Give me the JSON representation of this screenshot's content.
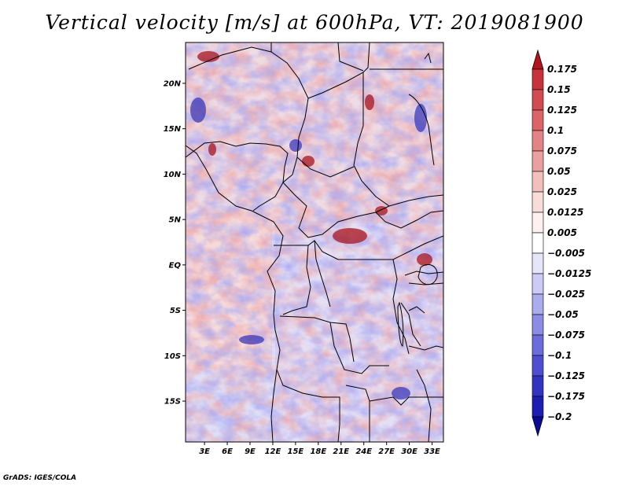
{
  "title": "Vertical velocity [m/s] at 600hPa, VT: 2019081900",
  "credit": "GrADS: IGES/COLA",
  "map": {
    "lat_ticks": [
      "20N",
      "15N",
      "10N",
      "5N",
      "EQ",
      "5S",
      "10S",
      "15S"
    ],
    "lat_values": [
      20,
      15,
      10,
      5,
      0,
      -5,
      -10,
      -15
    ],
    "lon_ticks": [
      "3E",
      "6E",
      "9E",
      "12E",
      "15E",
      "18E",
      "21E",
      "24E",
      "27E",
      "30E",
      "33E"
    ],
    "lon_values": [
      3,
      6,
      9,
      12,
      15,
      18,
      21,
      24,
      27,
      30,
      33
    ],
    "lat_range": [
      -19.5,
      24.5
    ],
    "lon_range": [
      0.5,
      34.5
    ]
  },
  "colorbar": {
    "labels": [
      "0.175",
      "0.15",
      "0.125",
      "0.1",
      "0.075",
      "0.05",
      "0.025",
      "0.0125",
      "0.005",
      "−0.005",
      "−0.0125",
      "−0.025",
      "−0.05",
      "−0.075",
      "−0.1",
      "−0.125",
      "−0.175",
      "−0.2"
    ],
    "colors": [
      "#b4141e",
      "#c8323a",
      "#d24b50",
      "#dc6468",
      "#e38385",
      "#eba0a0",
      "#f2bfbd",
      "#f8dcda",
      "#fdf1f0",
      "#ffffff",
      "#e6e6fb",
      "#cbcbf6",
      "#ababef",
      "#8c8ce6",
      "#6c6cdc",
      "#4e4ed2",
      "#3333c2",
      "#1e1eb0",
      "#0a0a96"
    ]
  }
}
